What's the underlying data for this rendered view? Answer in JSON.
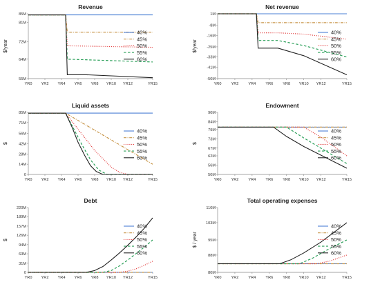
{
  "chart_data": [
    {
      "type": "line",
      "title": "Revenue",
      "ylabel": "$/year",
      "ylim": [
        55,
        85
      ],
      "ytick_labels": [
        "55M",
        "64M",
        "72M",
        "81M",
        "85M"
      ],
      "ytick_values": [
        55,
        64,
        72,
        81,
        85
      ],
      "x": [
        0,
        4.5,
        5,
        15
      ],
      "xtick_labels": [
        "YR0",
        "YR2",
        "YR4",
        "YR6",
        "YR8",
        "YR10",
        "YR12",
        "YR15"
      ],
      "legend": "right",
      "series": [
        {
          "name": "40%",
          "style": "solid",
          "color": "#4a7fd4",
          "x": [
            0,
            15
          ],
          "y": [
            84.5,
            84.5
          ]
        },
        {
          "name": "45%",
          "style": "dashdot",
          "color": "#c8964a",
          "x": [
            0,
            4.5,
            4.7,
            15
          ],
          "y": [
            84.5,
            84.5,
            76.5,
            76.5
          ]
        },
        {
          "name": "50%",
          "style": "dotted",
          "color": "#e03030",
          "x": [
            0,
            4.5,
            4.7,
            15
          ],
          "y": [
            84.5,
            84.5,
            70.2,
            69.5
          ]
        },
        {
          "name": "55%",
          "style": "dashed",
          "color": "#2ca05a",
          "x": [
            0,
            4.5,
            4.7,
            15
          ],
          "y": [
            84.5,
            84.5,
            64.0,
            62.7
          ]
        },
        {
          "name": "60%",
          "style": "solid",
          "color": "#222222",
          "x": [
            0,
            4.5,
            4.7,
            7,
            15
          ],
          "y": [
            84.5,
            84.5,
            56.8,
            56.8,
            55.4
          ]
        }
      ]
    },
    {
      "type": "line",
      "title": "Net revenue",
      "ylabel": "$/year",
      "ylim": [
        -50,
        1
      ],
      "ytick_labels": [
        "1M",
        "-8M",
        "-16M",
        "-25M",
        "-33M",
        "-41M",
        "-50M"
      ],
      "ytick_values": [
        1,
        -8,
        -16,
        -25,
        -33,
        -41,
        -50
      ],
      "xtick_labels": [
        "YR0",
        "YR2",
        "YR4",
        "YR6",
        "YR8",
        "YR10",
        "YR12",
        "YR15"
      ],
      "legend": "right",
      "series": [
        {
          "name": "40%",
          "style": "solid",
          "color": "#4a7fd4",
          "x": [
            0,
            15
          ],
          "y": [
            1,
            1
          ]
        },
        {
          "name": "45%",
          "style": "dashdot",
          "color": "#c8964a",
          "x": [
            0,
            4.5,
            4.7,
            15
          ],
          "y": [
            1,
            1,
            -6,
            -6
          ]
        },
        {
          "name": "50%",
          "style": "dotted",
          "color": "#e03030",
          "x": [
            0,
            4.5,
            4.7,
            7,
            10,
            15
          ],
          "y": [
            1,
            1,
            -14,
            -14,
            -15,
            -19
          ]
        },
        {
          "name": "55%",
          "style": "dashed",
          "color": "#2ca05a",
          "x": [
            0,
            4.5,
            4.7,
            7,
            10,
            15
          ],
          "y": [
            1,
            1,
            -20,
            -20,
            -24,
            -33
          ]
        },
        {
          "name": "60%",
          "style": "solid",
          "color": "#222222",
          "x": [
            0,
            4.5,
            4.7,
            7,
            10,
            15
          ],
          "y": [
            1,
            1,
            -26,
            -26,
            -32,
            -47
          ]
        }
      ]
    },
    {
      "type": "line",
      "title": "Liquid assets",
      "ylabel": "$",
      "ylim": [
        0,
        85
      ],
      "ytick_labels": [
        "85M",
        "71M",
        "56M",
        "42M",
        "28M",
        "14M",
        "0"
      ],
      "ytick_values": [
        85,
        71,
        56,
        42,
        28,
        14,
        0
      ],
      "xtick_labels": [
        "YR0",
        "YR2",
        "YR4",
        "YR6",
        "YR8",
        "YR10",
        "YR12",
        "YR15"
      ],
      "legend": "right",
      "series": [
        {
          "name": "40%",
          "style": "solid",
          "color": "#4a7fd4",
          "x": [
            0,
            15
          ],
          "y": [
            84,
            84
          ]
        },
        {
          "name": "45%",
          "style": "dashdot",
          "color": "#c8964a",
          "x": [
            0,
            4.5,
            15
          ],
          "y": [
            84,
            84,
            14
          ]
        },
        {
          "name": "50%",
          "style": "dotted",
          "color": "#e03030",
          "x": [
            0,
            4.5,
            6,
            8,
            10,
            11,
            12,
            15
          ],
          "y": [
            84,
            84,
            62,
            33,
            10,
            3,
            0,
            0
          ]
        },
        {
          "name": "55%",
          "style": "dashed",
          "color": "#2ca05a",
          "x": [
            0,
            4.5,
            5.5,
            6.5,
            7.5,
            8.5,
            9.5,
            15
          ],
          "y": [
            84,
            84,
            62,
            40,
            20,
            6,
            0,
            0
          ]
        },
        {
          "name": "60%",
          "style": "solid",
          "color": "#222222",
          "x": [
            0,
            4.5,
            5.3,
            6,
            6.8,
            7.5,
            8.2,
            9,
            15
          ],
          "y": [
            84,
            84,
            64,
            44,
            26,
            12,
            4,
            0,
            0
          ]
        }
      ]
    },
    {
      "type": "line",
      "title": "Endowment",
      "ylabel": "$",
      "ylim": [
        50,
        90
      ],
      "ytick_labels": [
        "90M",
        "84M",
        "79M",
        "73M",
        "67M",
        "62M",
        "56M",
        "50M"
      ],
      "ytick_values": [
        90,
        84,
        79,
        73,
        67,
        62,
        56,
        50
      ],
      "xtick_labels": [
        "YR0",
        "YR2",
        "YR4",
        "YR6",
        "YR8",
        "YR10",
        "YR12",
        "YR15"
      ],
      "legend": "right",
      "series": [
        {
          "name": "40%",
          "style": "solid",
          "color": "#4a7fd4",
          "x": [
            0,
            15
          ],
          "y": [
            80.5,
            80.5
          ]
        },
        {
          "name": "45%",
          "style": "dashdot",
          "color": "#c8964a",
          "x": [
            0,
            15
          ],
          "y": [
            80.5,
            80.5
          ]
        },
        {
          "name": "50%",
          "style": "dotted",
          "color": "#e03030",
          "x": [
            0,
            10,
            12,
            15
          ],
          "y": [
            80.5,
            80.5,
            74,
            62
          ]
        },
        {
          "name": "55%",
          "style": "dashed",
          "color": "#2ca05a",
          "x": [
            0,
            8,
            10,
            15
          ],
          "y": [
            80.5,
            80.5,
            73.5,
            57
          ]
        },
        {
          "name": "60%",
          "style": "solid",
          "color": "#222222",
          "x": [
            0,
            6.5,
            8,
            10,
            15
          ],
          "y": [
            80.5,
            80.5,
            74.5,
            68,
            54
          ]
        }
      ]
    },
    {
      "type": "line",
      "title": "Debt",
      "ylabel": "$",
      "ylim": [
        0,
        220
      ],
      "ytick_labels": [
        "220M",
        "189M",
        "157M",
        "126M",
        "94M",
        "63M",
        "31M",
        "0"
      ],
      "ytick_values": [
        220,
        189,
        157,
        126,
        94,
        63,
        31,
        0
      ],
      "xtick_labels": [
        "YR0",
        "YR2",
        "YR4",
        "YR6",
        "YR8",
        "YR10",
        "YR12",
        "YR15"
      ],
      "legend": "right",
      "series": [
        {
          "name": "40%",
          "style": "solid",
          "color": "#4a7fd4",
          "x": [
            0,
            15
          ],
          "y": [
            0,
            0
          ]
        },
        {
          "name": "45%",
          "style": "dashdot",
          "color": "#c8964a",
          "x": [
            0,
            15
          ],
          "y": [
            0,
            0
          ]
        },
        {
          "name": "50%",
          "style": "dotted",
          "color": "#e03030",
          "x": [
            0,
            11,
            12,
            13,
            14,
            15
          ],
          "y": [
            0,
            0,
            4,
            12,
            24,
            38
          ]
        },
        {
          "name": "55%",
          "style": "dashed",
          "color": "#2ca05a",
          "x": [
            0,
            9,
            10,
            11,
            12,
            13,
            14,
            15
          ],
          "y": [
            0,
            0,
            6,
            22,
            42,
            64,
            86,
            110
          ]
        },
        {
          "name": "60%",
          "style": "solid",
          "color": "#222222",
          "x": [
            0,
            7,
            8,
            9,
            10,
            11,
            12,
            13,
            14,
            15
          ],
          "y": [
            0,
            0,
            6,
            20,
            42,
            66,
            92,
            120,
            150,
            185
          ]
        }
      ]
    },
    {
      "type": "line",
      "title": "Total operating expenses",
      "ylabel": "$ / year",
      "ylim": [
        80,
        110
      ],
      "ytick_labels": [
        "110M",
        "103M",
        "95M",
        "88M",
        "80M"
      ],
      "ytick_values": [
        110,
        103,
        95,
        88,
        80
      ],
      "xtick_labels": [
        "YR0",
        "YR2",
        "YR4",
        "YR6",
        "YR8",
        "YR10",
        "YR12",
        "YR15"
      ],
      "legend": "right",
      "series": [
        {
          "name": "40%",
          "style": "solid",
          "color": "#4a7fd4",
          "x": [
            0,
            15
          ],
          "y": [
            84,
            84
          ]
        },
        {
          "name": "45%",
          "style": "dashdot",
          "color": "#c8964a",
          "x": [
            0,
            15
          ],
          "y": [
            84,
            84
          ]
        },
        {
          "name": "50%",
          "style": "dotted",
          "color": "#e03030",
          "x": [
            0,
            11.5,
            13,
            15
          ],
          "y": [
            84,
            84,
            85.2,
            88
          ]
        },
        {
          "name": "55%",
          "style": "dashed",
          "color": "#2ca05a",
          "x": [
            0,
            9.5,
            11,
            13,
            15
          ],
          "y": [
            84,
            84,
            86.5,
            91,
            95
          ]
        },
        {
          "name": "60%",
          "style": "solid",
          "color": "#222222",
          "x": [
            0,
            7.2,
            8.5,
            10,
            12,
            15
          ],
          "y": [
            84,
            84,
            85.8,
            89,
            94,
            103
          ]
        }
      ]
    }
  ]
}
